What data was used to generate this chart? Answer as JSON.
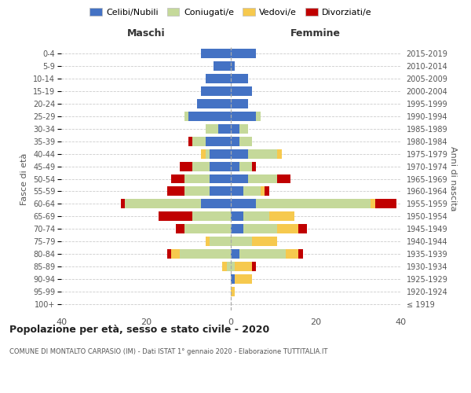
{
  "age_groups": [
    "100+",
    "95-99",
    "90-94",
    "85-89",
    "80-84",
    "75-79",
    "70-74",
    "65-69",
    "60-64",
    "55-59",
    "50-54",
    "45-49",
    "40-44",
    "35-39",
    "30-34",
    "25-29",
    "20-24",
    "15-19",
    "10-14",
    "5-9",
    "0-4"
  ],
  "birth_years": [
    "≤ 1919",
    "1920-1924",
    "1925-1929",
    "1930-1934",
    "1935-1939",
    "1940-1944",
    "1945-1949",
    "1950-1954",
    "1955-1959",
    "1960-1964",
    "1965-1969",
    "1970-1974",
    "1975-1979",
    "1980-1984",
    "1985-1989",
    "1990-1994",
    "1995-1999",
    "2000-2004",
    "2005-2009",
    "2010-2014",
    "2015-2019"
  ],
  "maschi": {
    "celibi": [
      0,
      0,
      0,
      0,
      0,
      0,
      0,
      0,
      7,
      5,
      5,
      5,
      5,
      6,
      3,
      10,
      8,
      7,
      6,
      4,
      7
    ],
    "coniugati": [
      0,
      0,
      0,
      1,
      12,
      5,
      11,
      9,
      18,
      6,
      6,
      4,
      1,
      3,
      3,
      1,
      0,
      0,
      0,
      0,
      0
    ],
    "vedovi": [
      0,
      0,
      0,
      1,
      2,
      1,
      0,
      0,
      0,
      0,
      0,
      0,
      1,
      0,
      0,
      0,
      0,
      0,
      0,
      0,
      0
    ],
    "divorziati": [
      0,
      0,
      0,
      0,
      1,
      0,
      2,
      8,
      1,
      4,
      3,
      3,
      0,
      1,
      0,
      0,
      0,
      0,
      0,
      0,
      0
    ]
  },
  "femmine": {
    "nubili": [
      0,
      0,
      1,
      0,
      2,
      0,
      3,
      3,
      6,
      3,
      4,
      2,
      4,
      2,
      2,
      6,
      4,
      5,
      4,
      1,
      6
    ],
    "coniugate": [
      0,
      0,
      0,
      1,
      11,
      5,
      8,
      6,
      27,
      4,
      7,
      3,
      7,
      3,
      2,
      1,
      0,
      0,
      0,
      0,
      0
    ],
    "vedove": [
      0,
      1,
      4,
      4,
      3,
      6,
      5,
      6,
      1,
      1,
      0,
      0,
      1,
      0,
      0,
      0,
      0,
      0,
      0,
      0,
      0
    ],
    "divorziate": [
      0,
      0,
      0,
      1,
      1,
      0,
      2,
      0,
      5,
      1,
      3,
      1,
      0,
      0,
      0,
      0,
      0,
      0,
      0,
      0,
      0
    ]
  },
  "colors": {
    "celibi_nubili": "#4472C4",
    "coniugati": "#C5D99A",
    "vedovi": "#F6C94E",
    "divorziati": "#C00000"
  },
  "xlim": 40,
  "title": "Popolazione per età, sesso e stato civile - 2020",
  "subtitle": "COMUNE DI MONTALTO CARPASIO (IM) - Dati ISTAT 1° gennaio 2020 - Elaborazione TUTTITALIA.IT",
  "ylabel_left": "Fasce di età",
  "ylabel_right": "Anni di nascita",
  "xlabel_left": "Maschi",
  "xlabel_right": "Femmine",
  "legend_labels": [
    "Celibi/Nubili",
    "Coniugati/e",
    "Vedovi/e",
    "Divorziati/e"
  ],
  "bg_color": "#FFFFFF",
  "grid_color": "#CCCCCC"
}
